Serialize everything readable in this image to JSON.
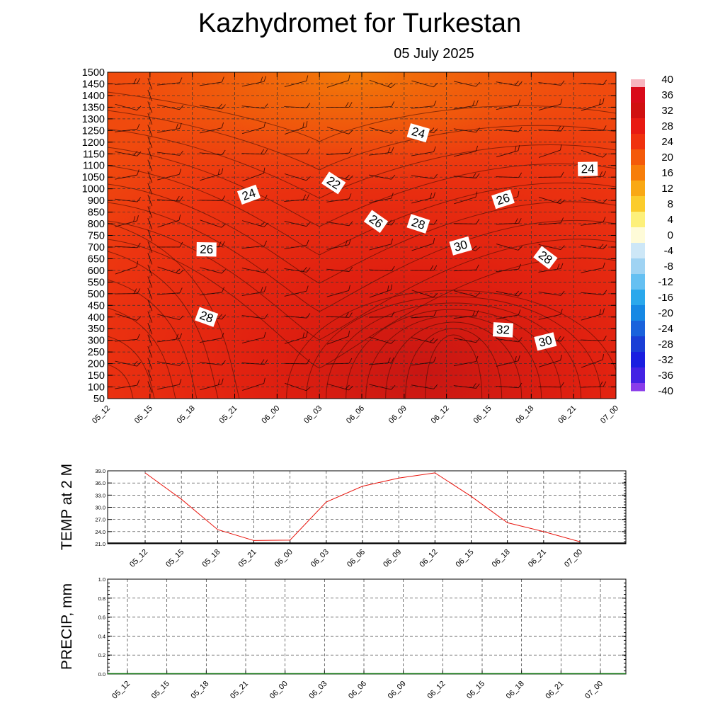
{
  "title": "Kazhydromet  for Turkestan",
  "subtitle": "05 July 2025",
  "chart_data": [
    {
      "type": "heatmap",
      "y_ticks": [
        50,
        100,
        150,
        200,
        250,
        300,
        350,
        400,
        450,
        500,
        550,
        600,
        650,
        700,
        750,
        800,
        850,
        900,
        1000,
        1050,
        1100,
        1150,
        1200,
        1250,
        1300,
        1350,
        1400,
        1450,
        1500
      ],
      "x_ticks": [
        "05_12",
        "05_15",
        "05_18",
        "05_21",
        "06_00",
        "06_03",
        "06_06",
        "06_09",
        "06_12",
        "06_15",
        "06_18",
        "06_21",
        "07_00"
      ],
      "colorbar": {
        "ticks": [
          40,
          36,
          32,
          28,
          24,
          20,
          16,
          12,
          8,
          4,
          0,
          -4,
          -8,
          -12,
          -16,
          -20,
          -24,
          -28,
          -32,
          -36,
          -40
        ],
        "range": [
          -40,
          40
        ]
      },
      "contour_labels": [
        {
          "text": "24",
          "x": "05_21",
          "y": 950
        },
        {
          "text": "22",
          "x": "06_03",
          "y": 1025
        },
        {
          "text": "24",
          "x": "06_09",
          "y": 1240
        },
        {
          "text": "24",
          "x": "06_21",
          "y": 1085
        },
        {
          "text": "26",
          "x": "06_15",
          "y": 910
        },
        {
          "text": "26",
          "x": "06_06",
          "y": 810
        },
        {
          "text": "28",
          "x": "06_09",
          "y": 800
        },
        {
          "text": "26",
          "x": "05_18",
          "y": 690
        },
        {
          "text": "30",
          "x": "06_12",
          "y": 705
        },
        {
          "text": "28",
          "x": "06_18",
          "y": 655
        },
        {
          "text": "28",
          "x": "05_18",
          "y": 400
        },
        {
          "text": "32",
          "x": "06_15",
          "y": 345
        },
        {
          "text": "30",
          "x": "06_18",
          "y": 295
        }
      ],
      "grid": true
    },
    {
      "type": "line",
      "ylabel": "TEMP at 2 M",
      "x": [
        "05_12",
        "05_15",
        "05_18",
        "05_21",
        "06_00",
        "06_03",
        "06_06",
        "06_09",
        "06_12",
        "06_15",
        "06_18",
        "06_21",
        "07_00"
      ],
      "series": [
        {
          "values": [
            38.5,
            32.0,
            24.5,
            21.8,
            21.9,
            31.3,
            35.2,
            37.2,
            38.5,
            32.7,
            26.2,
            24.0,
            21.5
          ]
        }
      ],
      "y_ticks": [
        "21.0",
        "24.0",
        "27.0",
        "30.0",
        "33.0",
        "36.0",
        "39.0"
      ],
      "ylim": [
        21,
        39
      ],
      "line_color": "#e8140c",
      "grid": true
    },
    {
      "type": "line",
      "ylabel": "PRECIP, mm",
      "x": [
        "05_12",
        "05_15",
        "05_18",
        "05_21",
        "06_00",
        "06_03",
        "06_06",
        "06_09",
        "06_12",
        "06_15",
        "06_18",
        "06_21",
        "07_00"
      ],
      "series": [
        {
          "values": [
            0,
            0,
            0,
            0,
            0,
            0,
            0,
            0,
            0,
            0,
            0,
            0,
            0
          ]
        }
      ],
      "y_ticks": [
        "0.0",
        "0.2",
        "0.4",
        "0.6",
        "0.8",
        "1.0"
      ],
      "ylim": [
        0,
        1
      ],
      "line_color": "#1a7a1a",
      "grid": true
    }
  ]
}
